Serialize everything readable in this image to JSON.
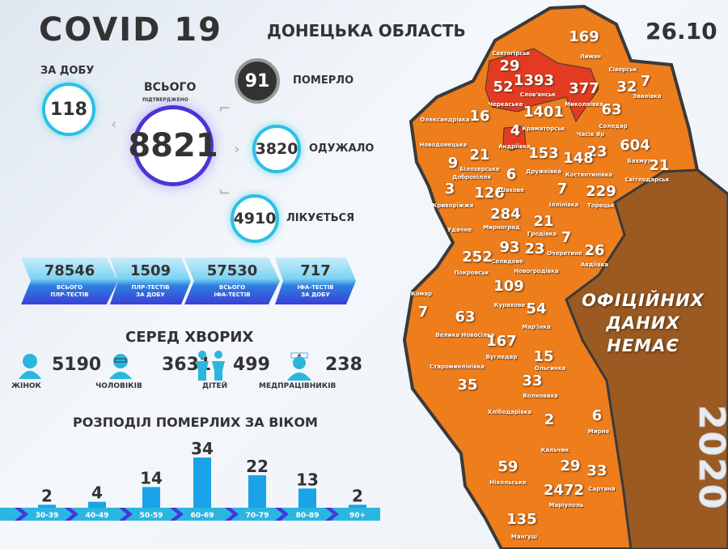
{
  "header": {
    "title": "COVID 19",
    "region": "ДОНЕЦЬКА ОБЛАСТЬ",
    "date": "26.10"
  },
  "stats": {
    "daily": {
      "label": "ЗА ДОБУ",
      "value": "118"
    },
    "total": {
      "label": "ВСЬОГО",
      "sublabel": "ПІДТВЕРДЖЕНО",
      "value": "8821"
    },
    "died": {
      "label": "ПОМЕРЛО",
      "value": "91"
    },
    "recovered": {
      "label": "ОДУЖАЛО",
      "value": "3820"
    },
    "treated": {
      "label": "ЛІКУЄТЬСЯ",
      "value": "4910"
    }
  },
  "tests": [
    {
      "value": "78546",
      "line1": "ВСЬОГО",
      "line2": "ПЛР-ТЕСТІВ"
    },
    {
      "value": "1509",
      "line1": "ПЛР-ТЕСТІВ",
      "line2": "ЗА ДОБУ"
    },
    {
      "value": "57530",
      "line1": "ВСЬОГО",
      "line2": "ІФА-ТЕСТІВ"
    },
    {
      "value": "717",
      "line1": "ІФА-ТЕСТІВ",
      "line2": "ЗА ДОБУ"
    }
  ],
  "among_sick": {
    "title": "СЕРЕД ХВОРИХ",
    "groups": [
      {
        "icon": "woman-icon",
        "value": "5190",
        "label": "ЖІНОК"
      },
      {
        "icon": "man-icon",
        "value": "3631",
        "label": "ЧОЛОВІКІВ"
      },
      {
        "icon": "children-icon",
        "value": "499",
        "label": "ДІТЕЙ"
      },
      {
        "icon": "nurse-icon",
        "value": "238",
        "label": "МЕДПРАЦІВНИКІВ"
      }
    ]
  },
  "chart_data": {
    "type": "bar",
    "title": "РОЗПОДІЛ ПОМЕРЛИХ ЗА ВІКОМ",
    "categories": [
      "30-39",
      "40-49",
      "50-59",
      "60-69",
      "70-79",
      "80-89",
      "90+"
    ],
    "values": [
      2,
      4,
      14,
      34,
      22,
      13,
      2
    ],
    "ylim": [
      0,
      34
    ],
    "grid": false,
    "color": "#1aa3e8"
  },
  "map": {
    "no_data": [
      "ОФІЦІЙНИХ",
      "ДАНИХ",
      "НЕМАЄ"
    ],
    "colors": {
      "district": "#ee7d1c",
      "highlight": "#e23b22",
      "no_data": "#9a5a22",
      "border": "#3a3a3a"
    },
    "districts": [
      {
        "value": "169",
        "name": "Лиман"
      },
      {
        "value": "29",
        "name": "Святогірськ"
      },
      {
        "value": "1393",
        "name": "Слов'янськ"
      },
      {
        "value": "52",
        "name": "Черкаське"
      },
      {
        "value": "377",
        "name": "Миколаївка"
      },
      {
        "value": "32",
        "name": "Сіверськ"
      },
      {
        "value": "7",
        "name": "Званівка"
      },
      {
        "value": "63",
        "name": "Соледар"
      },
      {
        "value": "1401",
        "name": "Краматорськ"
      },
      {
        "value": "16",
        "name": "Олександрівка"
      },
      {
        "value": "4",
        "name": "Андріївка"
      },
      {
        "value": "23",
        "name": "Часів Яр"
      },
      {
        "value": "604",
        "name": "Бахмут"
      },
      {
        "value": "9",
        "name": "Новодонецьке"
      },
      {
        "value": "21",
        "name": "Білозерське"
      },
      {
        "value": "126",
        "name": "Добропілля"
      },
      {
        "value": "153",
        "name": "Дружківка"
      },
      {
        "value": "148",
        "name": "Костянтинівка"
      },
      {
        "value": "21",
        "name": "Світлодарськ"
      },
      {
        "value": "6",
        "name": "Шахове"
      },
      {
        "value": "3",
        "name": "Криворіжжя"
      },
      {
        "value": "7",
        "name": "Іллінівка"
      },
      {
        "value": "229",
        "name": "Торецьк"
      },
      {
        "value": "284",
        "name": "Мирноград"
      },
      {
        "value": "21",
        "name": "Гродівка"
      },
      {
        "value": "",
        "name": "Удачне"
      },
      {
        "value": "7",
        "name": "Очеретине"
      },
      {
        "value": "26",
        "name": "Авдіївка"
      },
      {
        "value": "93",
        "name": "Селидове"
      },
      {
        "value": "23",
        "name": "Новогродівка"
      },
      {
        "value": "252",
        "name": "Покровськ"
      },
      {
        "value": "109",
        "name": "Курахове"
      },
      {
        "value": "7",
        "name": "Комар"
      },
      {
        "value": "63",
        "name": "Велика Новосілка"
      },
      {
        "value": "54",
        "name": "Мар'їнка"
      },
      {
        "value": "167",
        "name": "Вугледар"
      },
      {
        "value": "15",
        "name": "Ольгинка"
      },
      {
        "value": "35",
        "name": "Староминлінівка"
      },
      {
        "value": "33",
        "name": "Волноваха"
      },
      {
        "value": "2",
        "name": "Хлібодарівка"
      },
      {
        "value": "6",
        "name": "Мирне"
      },
      {
        "value": "29",
        "name": "Кальчик"
      },
      {
        "value": "59",
        "name": "Нікольське"
      },
      {
        "value": "33",
        "name": "Сартана"
      },
      {
        "value": "2472",
        "name": "Маріуполь"
      },
      {
        "value": "135",
        "name": "Мангуш"
      }
    ]
  },
  "watermark_year": "2020"
}
